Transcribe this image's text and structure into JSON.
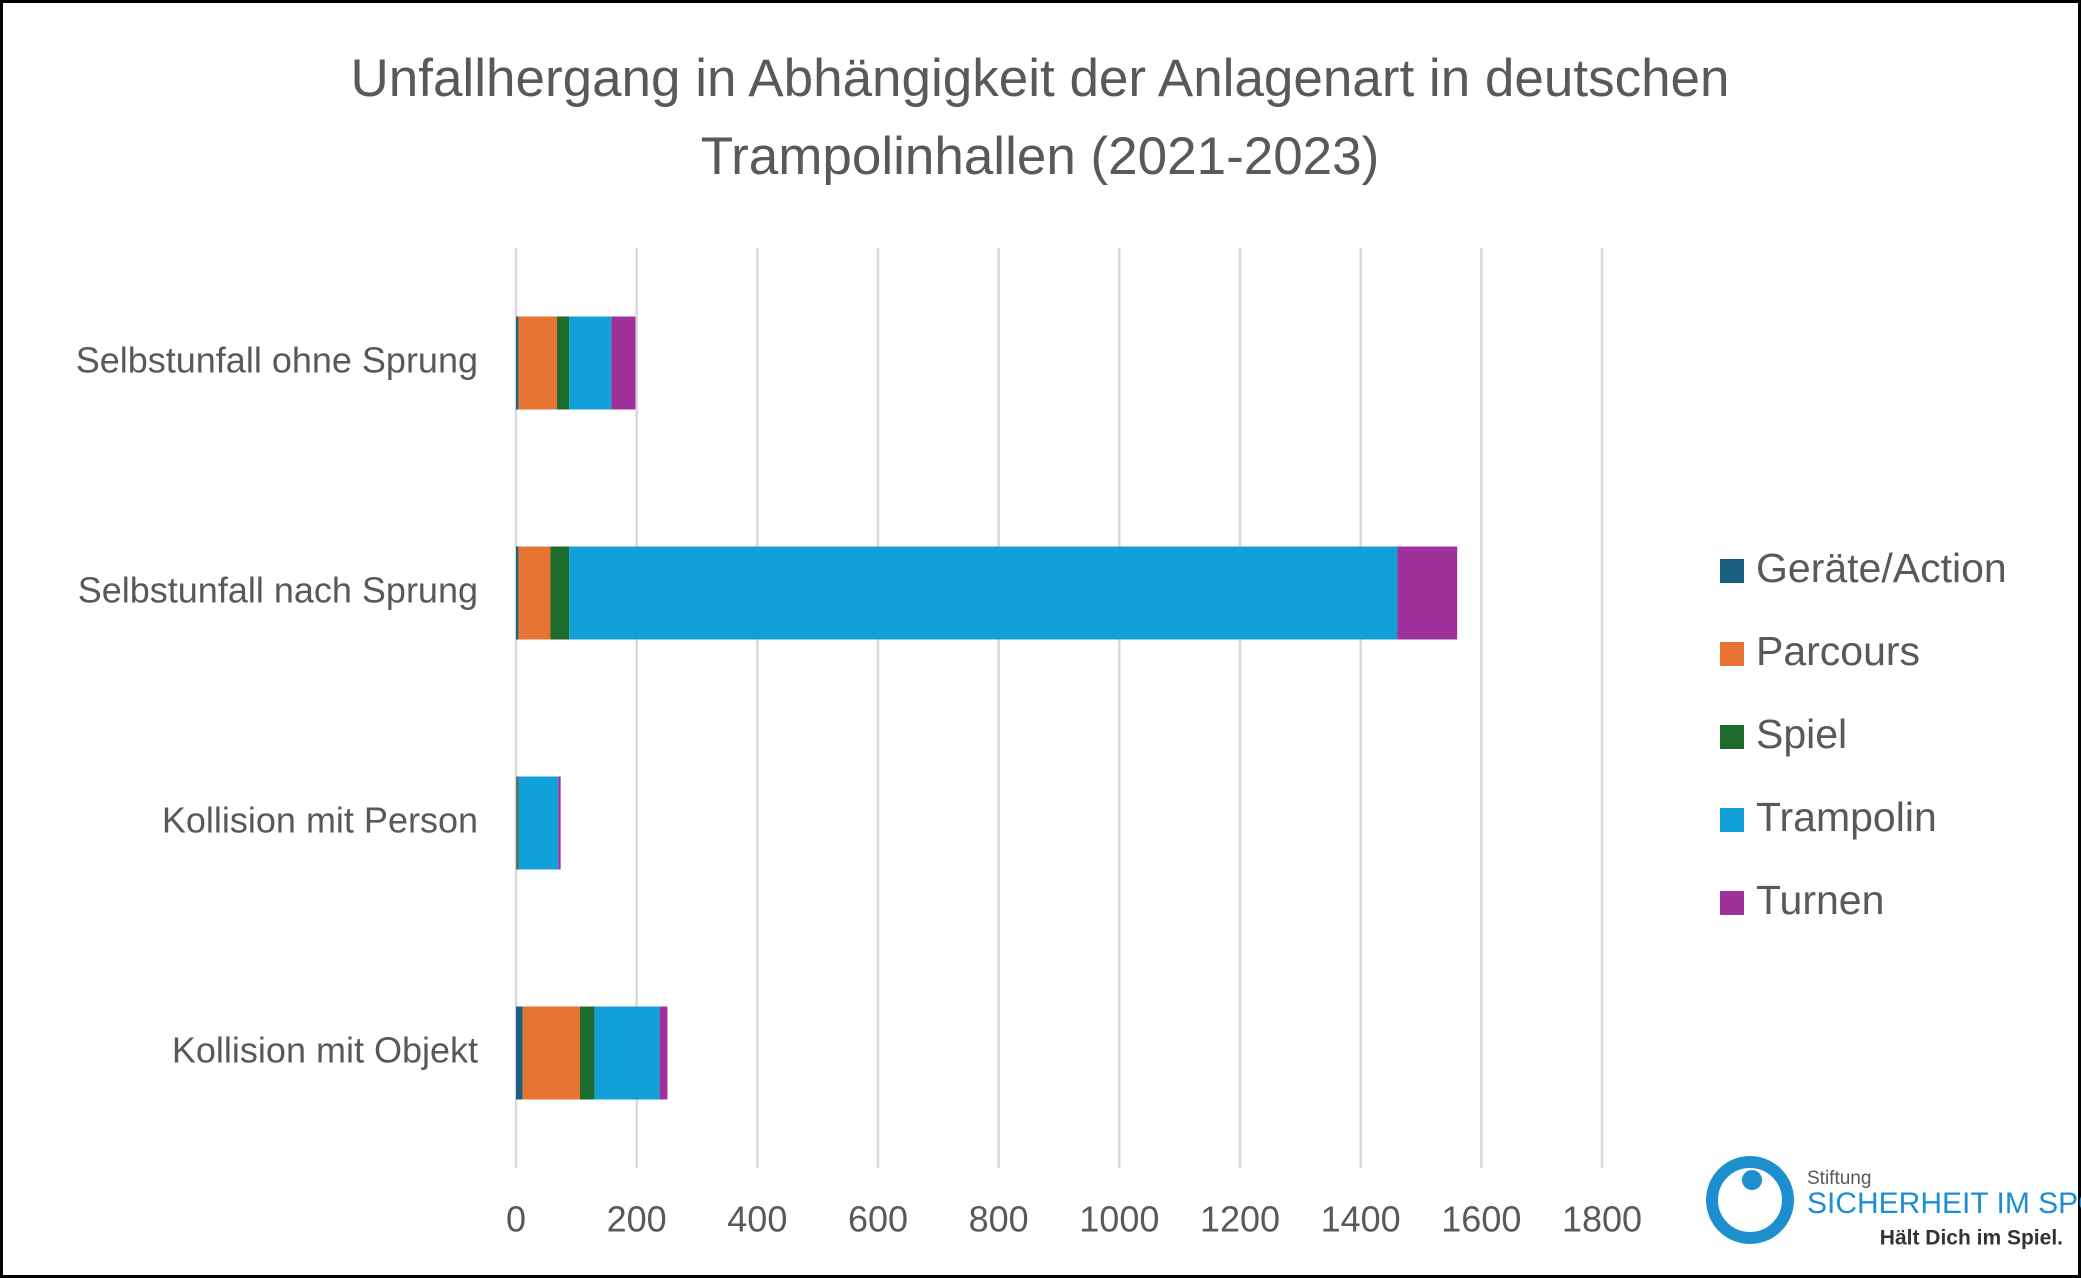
{
  "chart_data": {
    "type": "stacked-bar-horizontal",
    "title": "Unfallhergang in Abhängigkeit der Anlagenart in deutschen Trampolinhallen (2021-2023)",
    "categories": [
      "Selbstunfall ohne Sprung",
      "Selbstunfall nach Sprung",
      "Kollision mit Person",
      "Kollision mit Objekt"
    ],
    "series": [
      {
        "name": "Geräte/Action",
        "color": "#1a5e80",
        "values": [
          4,
          4,
          1,
          11
        ]
      },
      {
        "name": "Parcours",
        "color": "#e87434",
        "values": [
          64,
          53,
          1,
          95
        ]
      },
      {
        "name": "Spiel",
        "color": "#1e6b2c",
        "values": [
          20,
          31,
          2,
          24
        ]
      },
      {
        "name": "Trampolin",
        "color": "#12a0d8",
        "values": [
          70,
          1373,
          66,
          108
        ]
      },
      {
        "name": "Turnen",
        "color": "#a0309a",
        "values": [
          40,
          99,
          4,
          13
        ]
      }
    ],
    "xlim": [
      0,
      1800
    ],
    "xticks": [
      0,
      200,
      400,
      600,
      800,
      1000,
      1200,
      1400,
      1600,
      1800
    ],
    "grid": true,
    "legend": "right"
  },
  "logo": {
    "top": "Stiftung",
    "name": "SICHERHEIT IM SPORT",
    "slogan": "Hält Dich im Spiel."
  }
}
